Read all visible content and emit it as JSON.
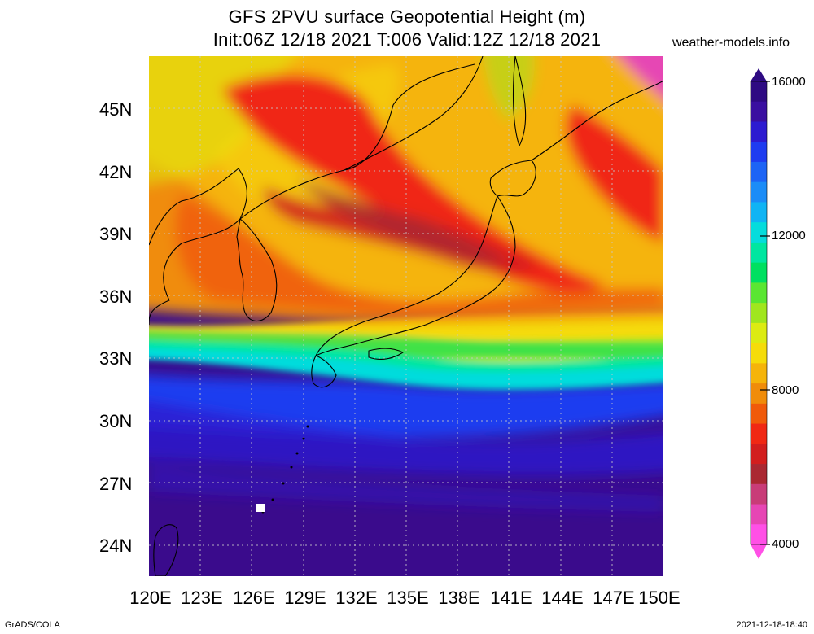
{
  "title_line1": "GFS 2PVU surface Geopotential Height (m)",
  "title_line2": "Init:06Z 12/18 2021 T:006 Valid:12Z 12/18 2021",
  "brand": "weather-models.info",
  "footer_left": "GrADS/COLA",
  "footer_right": "2021-12-18-18:40",
  "map": {
    "lon_range": [
      120,
      150
    ],
    "lat_range": [
      22.5,
      47.5
    ],
    "lat_ticks": [
      "45N",
      "42N",
      "39N",
      "36N",
      "33N",
      "30N",
      "27N",
      "24N"
    ],
    "lon_ticks": [
      "120E",
      "123E",
      "126E",
      "129E",
      "132E",
      "135E",
      "138E",
      "141E",
      "144E",
      "147E",
      "150E"
    ],
    "grid": "dotted"
  },
  "colorbar": {
    "labels": [
      "16000",
      "12000",
      "8000",
      "4000"
    ],
    "colors": [
      "#2e0a82",
      "#3a0fa0",
      "#2d1bd0",
      "#1e3cf0",
      "#1d64f5",
      "#1b8cf7",
      "#10b4f4",
      "#05dcdc",
      "#00e6a0",
      "#00e060",
      "#5ae632",
      "#a0e61e",
      "#dceb12",
      "#f5dc0a",
      "#f5b40a",
      "#f08c0a",
      "#f05a0a",
      "#f02814",
      "#d21e1e",
      "#aa2832",
      "#c83c78",
      "#e646b4",
      "#ff50e6"
    ]
  }
}
